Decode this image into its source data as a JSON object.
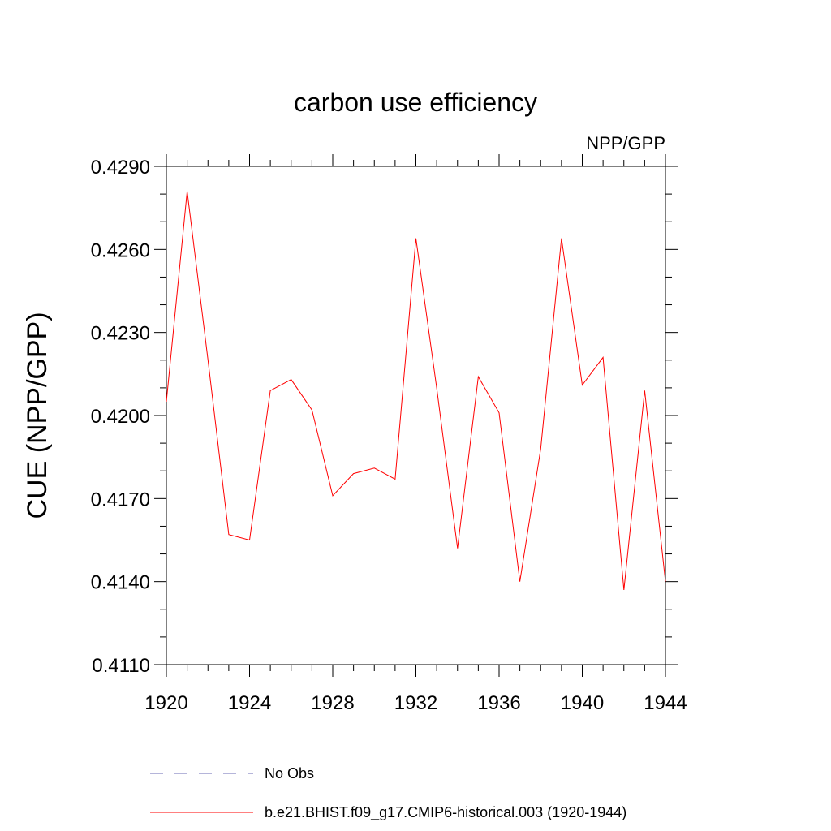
{
  "chart_data": {
    "type": "line",
    "title": "carbon use efficiency",
    "subtitle": "NPP/GPP",
    "xlabel": "",
    "ylabel": "CUE  (NPP/GPP)",
    "xlim": [
      1920,
      1944
    ],
    "ylim": [
      0.411,
      0.429
    ],
    "x_major_ticks": [
      1920,
      1924,
      1928,
      1932,
      1936,
      1940,
      1944
    ],
    "x_tick_labels": [
      "1920",
      "1924",
      "1928",
      "1932",
      "1936",
      "1940",
      "1944"
    ],
    "y_major_ticks": [
      0.411,
      0.414,
      0.417,
      0.42,
      0.423,
      0.426,
      0.429
    ],
    "y_tick_labels": [
      "0.4110",
      "0.4140",
      "0.4170",
      "0.4200",
      "0.4230",
      "0.4260",
      "0.4290"
    ],
    "grid": false,
    "series": [
      {
        "name": "b.e21.BHIST.f09_g17.CMIP6-historical.003 (1920-1944)",
        "color": "#ff0000",
        "style": "solid",
        "x": [
          1920,
          1921,
          1922,
          1923,
          1924,
          1925,
          1926,
          1927,
          1928,
          1929,
          1930,
          1931,
          1932,
          1933,
          1934,
          1935,
          1936,
          1937,
          1938,
          1939,
          1940,
          1941,
          1942,
          1943,
          1944
        ],
        "values": [
          0.4205,
          0.4281,
          0.422,
          0.4157,
          0.4155,
          0.4209,
          0.4213,
          0.4202,
          0.4171,
          0.4179,
          0.4181,
          0.4177,
          0.4264,
          0.421,
          0.4152,
          0.4214,
          0.4201,
          0.414,
          0.4188,
          0.4264,
          0.4211,
          0.4221,
          0.4137,
          0.4209,
          0.414
        ]
      }
    ],
    "legend": [
      {
        "label": "No Obs",
        "color": "#6b6bb5",
        "style": "dashed"
      },
      {
        "label": "b.e21.BHIST.f09_g17.CMIP6-historical.003 (1920-1944)",
        "color": "#ff0000",
        "style": "solid"
      }
    ],
    "legend_position": "bottom"
  }
}
